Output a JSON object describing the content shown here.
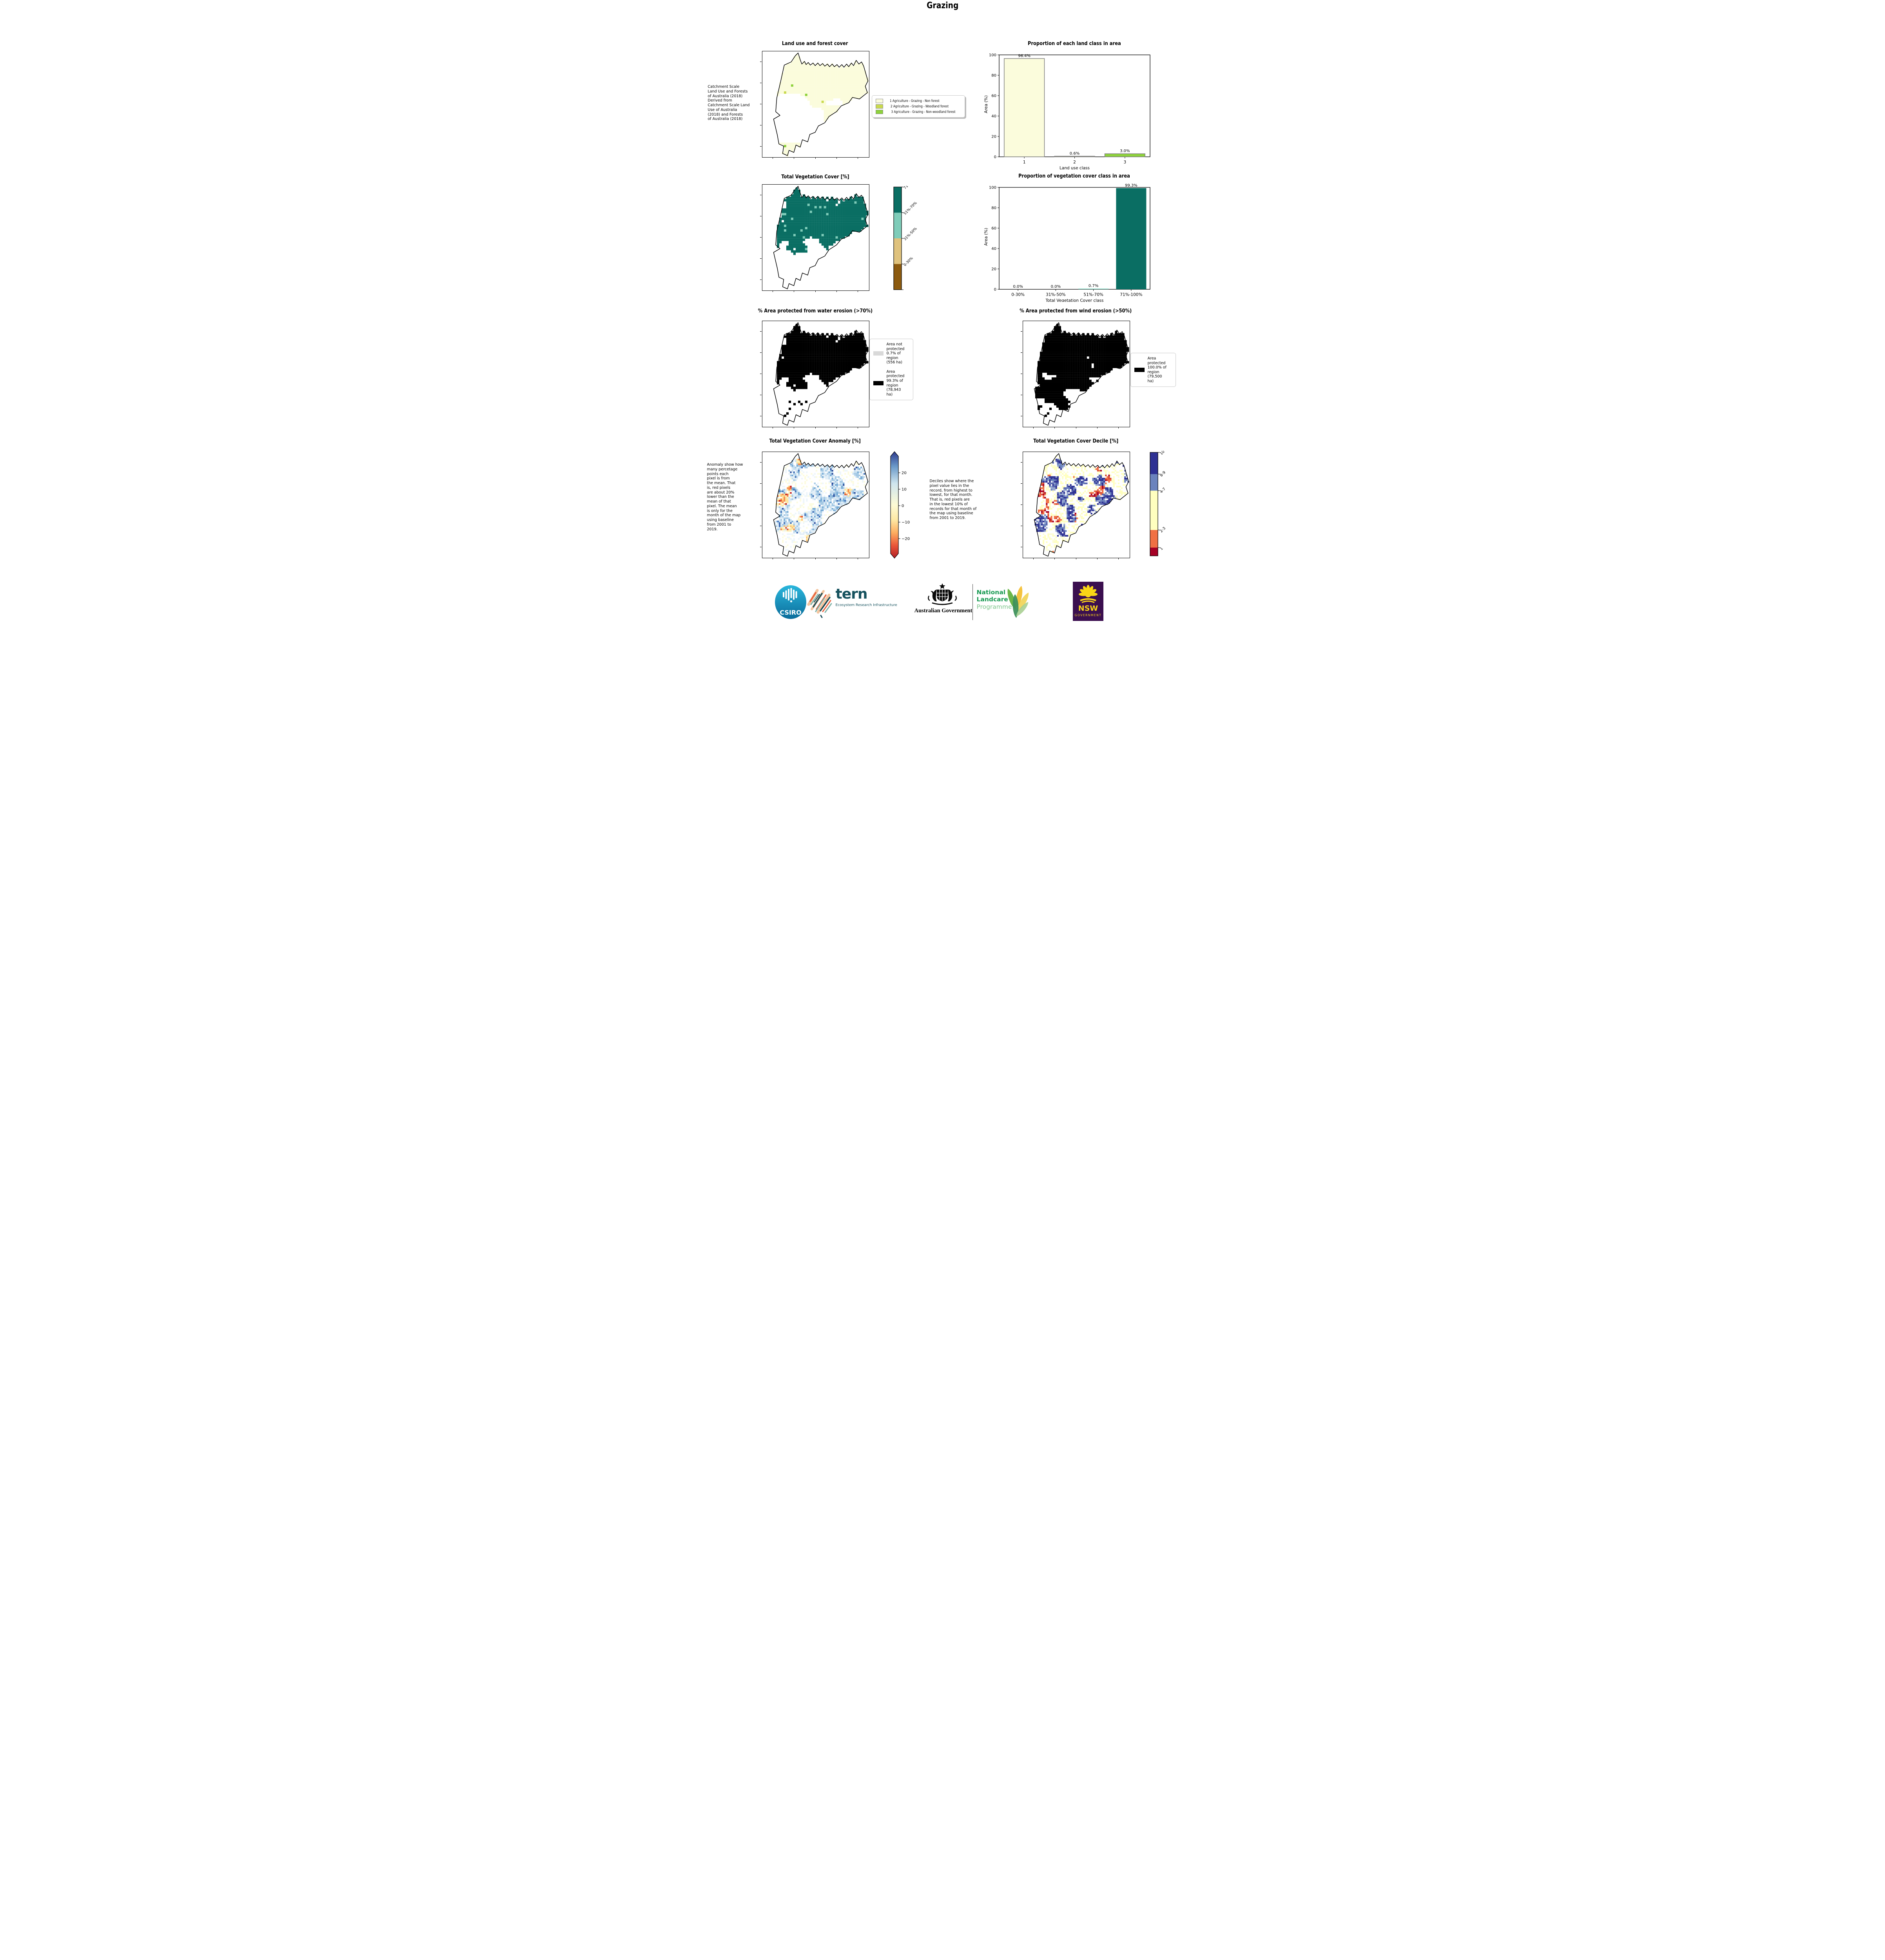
{
  "page": {
    "title": "Grazing"
  },
  "chart_data": [
    {
      "type": "bar",
      "title": "Proportion of each land class in area",
      "xlabel": "Land use class",
      "ylabel": "Area (%)",
      "ylim": [
        0,
        100
      ],
      "yticks": [
        0,
        20,
        40,
        60,
        80,
        100
      ],
      "categories": [
        "1",
        "2",
        "3"
      ],
      "values": [
        96.4,
        0.6,
        3.0
      ],
      "value_labels": [
        "96.4%",
        "0.6%",
        "3.0%"
      ],
      "bar_colors": [
        "#fbfcdc",
        "#c9d94e",
        "#8ed23c"
      ],
      "bar_edge": "#7f7f7f",
      "legend_position": "none",
      "grid": false
    },
    {
      "type": "bar",
      "title": "Proportion of vegetation cover class in area",
      "xlabel": "Total Vegetation Cover class",
      "ylabel": "Area (%)",
      "ylim": [
        0,
        100
      ],
      "yticks": [
        0,
        20,
        40,
        60,
        80,
        100
      ],
      "categories": [
        "0-30%",
        "31%-50%",
        "51%-70%",
        "71%-100%"
      ],
      "values": [
        0.0,
        0.0,
        0.7,
        99.3
      ],
      "value_labels": [
        "0.0%",
        "0.0%",
        "0.7%",
        "99.3%"
      ],
      "bar_colors": [
        "#8c5a0f",
        "#dfc27d",
        "#7fccb9",
        "#0a6e63"
      ],
      "bar_edge": null,
      "legend_position": "none",
      "grid": false
    }
  ],
  "maps": {
    "landuse": {
      "title": "Land use and forest cover",
      "caption": " Catchment Scale\nLand Use and Forests\nof Australia (2018)\nDerived from\nCatchment Scale Land\nUse of Australia\n(2018) and Forests\nof Australia (2018)",
      "legend": [
        {
          "label": "1 Agriculture - Grazing - Non forest",
          "color": "#fbfcdc"
        },
        {
          "label": "2 Agriculture - Grazing - Woodland forest",
          "color": "#c9d94e"
        },
        {
          "label": "3 Agriculture - Grazing - Non-woodland forest",
          "color": "#8ed23c"
        }
      ]
    },
    "vegcover": {
      "title": "Total Vegetation Cover [%]",
      "colorbar_labels": [
        "71%-100%",
        "51%-70%",
        "31%-50%",
        "0-30%"
      ],
      "colorbar_colors": [
        "#0a6e63",
        "#7fccb9",
        "#dfc27d",
        "#8c5a0f"
      ]
    },
    "water": {
      "title": "% Area protected from water erosion (>70%)",
      "legend": [
        {
          "color": "#d9d9d9",
          "label": "Area not\nprotected\n0.7% of\nregion\n(556 ha)"
        },
        {
          "color": "#000000",
          "label": "Area\nprotected\n99.3% of\nregion\n(78,943\nha)"
        }
      ]
    },
    "wind": {
      "title": "% Area protected from wind erosion (>50%)",
      "legend": [
        {
          "color": "#000000",
          "label": "Area\nprotected\n100.0% of\nregion\n(79,500\nha)"
        }
      ]
    },
    "anomaly": {
      "title": "Total Vegetation Cover Anomaly [%]",
      "caption": "Anomaly show how\nmany percetage\npoints each\npixel is from\nthe mean. That\nis, red pixels\nare about 20%\nlower than the\nmean of that\npixel. The mean\nis only for the\nmonth of the map\nusing baseline\nfrom 2001 to\n2019.",
      "colorbar_ticks": [
        "20",
        "10",
        "0",
        "−10",
        "−20"
      ]
    },
    "decile": {
      "title": "Total Vegetation Cover Decile [%]",
      "caption": "Deciles show where the\npixel value lies in the\nrecord, from highest to\nlowest, for that month.\nThat is, red pixels are\nin the lowest 10% of\nrecords for that month of\nthe map using baseline\nfrom 2001 to 2019.",
      "colorbar_labels": [
        "10",
        "8-9",
        "4-7",
        "2-3",
        "1"
      ],
      "colorbar_colors": [
        "#2e3193",
        "#6b83bd",
        "#ffffbf",
        "#f07044",
        "#a60126"
      ]
    }
  },
  "palettes": {
    "anomaly_gradient": [
      "#2c3a8d",
      "#6b9ac9",
      "#cfe5ee",
      "#fdfbd5",
      "#fee8a4",
      "#fdae61",
      "#ea5739",
      "#b11f26"
    ],
    "anomaly_blues": [
      "#e3eff7",
      "#c6def0",
      "#a3c8e4",
      "#74a9d4",
      "#3d6cb5",
      "#274899"
    ],
    "anomaly_warms": [
      "#fdf3c0",
      "#fee49b",
      "#fdc271",
      "#f58a4c",
      "#e4552f",
      "#bf1e26"
    ],
    "map_teal": "#0a6e63",
    "map_teal_light": "#7fccb9",
    "protected_gray": "#d9d9d9",
    "black": "#000000",
    "nsw_purple": "#3b0f4f",
    "nsw_yellow": "#f9d616",
    "landcare_green": "#189a52",
    "tern_teal": "#16525e"
  },
  "footer": {
    "csiro_label": "CSIRO",
    "tern_label": "tern",
    "tern_sub": "Ecosystem Research Infrastructure",
    "aus_gov": "Australian Government",
    "landcare_line1": "National",
    "landcare_line2": "Landcare",
    "landcare_line3": "Programme",
    "nsw_label": "NSW",
    "nsw_sub": "GOVERNMENT"
  }
}
